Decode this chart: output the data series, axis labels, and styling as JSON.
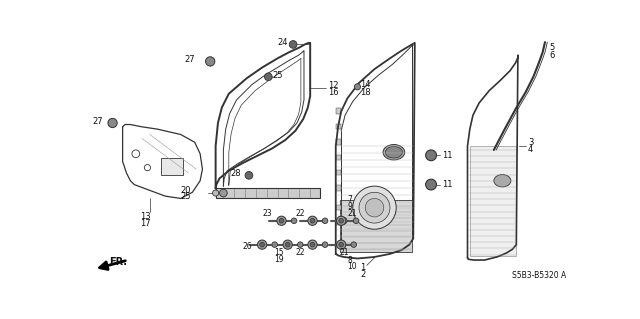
{
  "bg_color": "#ffffff",
  "line_color": "#333333",
  "part_number_code": "S5B3-B5320 A",
  "gray_fill": "#cccccc",
  "dark_gray": "#888888",
  "light_gray": "#dddddd"
}
